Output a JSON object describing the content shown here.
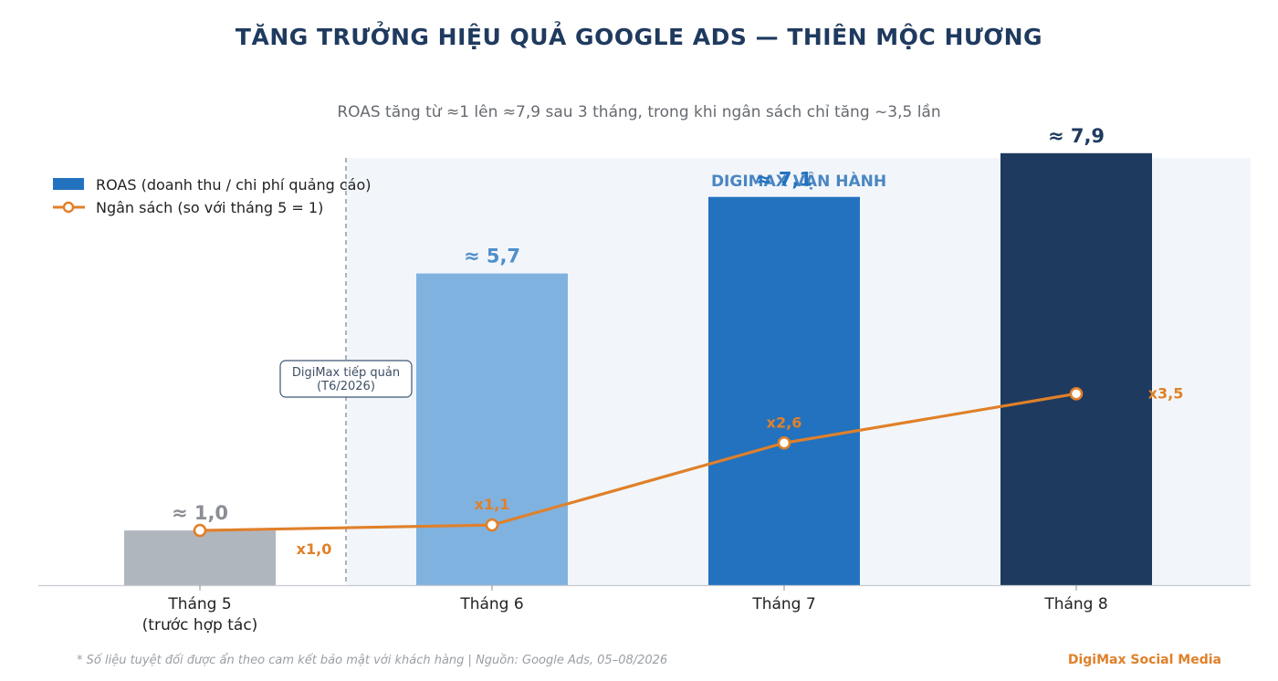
{
  "chart_data": {
    "type": "bar",
    "title": "TĂNG TRƯỞNG HIỆU QUẢ GOOGLE ADS — THIÊN MỘC HƯƠNG",
    "subtitle": "ROAS tăng từ ≈1 lên ≈7,9 sau 3 tháng, trong khi ngân sách chỉ tăng ~3,5 lần",
    "categories": [
      "Tháng 5\n(trước hợp tác)",
      "Tháng 6",
      "Tháng 7",
      "Tháng 8"
    ],
    "series": [
      {
        "name": "ROAS (doanh thu / chi phí quảng cáo)",
        "kind": "bar",
        "values": [
          1.0,
          5.7,
          7.1,
          7.9
        ],
        "labels": [
          "≈ 1,0",
          "≈ 5,7",
          "≈ 7,1",
          "≈ 7,9"
        ],
        "colors": [
          "#b0b6be",
          "#80b2e0",
          "#2272bf",
          "#1e3a5f"
        ],
        "label_colors": [
          "#8a8e94",
          "#4f8fcc",
          "#2272bf",
          "#1e3a5f"
        ]
      },
      {
        "name": "Ngân sách (so với tháng 5 = 1)",
        "kind": "line",
        "values": [
          1.0,
          1.1,
          2.6,
          3.5
        ],
        "labels": [
          "x1,0",
          "x1,1",
          "x2,6",
          "x3,5"
        ],
        "color": "#e0802a"
      }
    ],
    "ylim": [
      0,
      10
    ],
    "legend_position": "top-left",
    "annotations": {
      "region_label": "DIGIMAX VẬN HÀNH",
      "takeover_label": [
        "DigiMax tiếp quản",
        "(T6/2026)"
      ]
    }
  },
  "footnote": "* Số liệu tuyệt đối được ẩn theo cam kết bảo mật với khách hàng  |  Nguồn: Google Ads, 05–08/2026",
  "brand": "DigiMax Social Media",
  "colors": {
    "title": "#1f3a5f",
    "accent_orange": "#e0802a",
    "region_bg": "#f2f6fa",
    "region_label": "#4a86c2"
  }
}
